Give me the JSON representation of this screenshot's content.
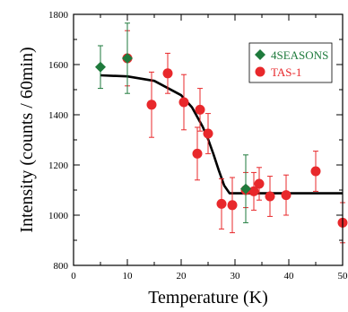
{
  "chart_data": {
    "type": "scatter",
    "title": "",
    "xlabel": "Temperature (K)",
    "ylabel": "Intensity (counts / 60min)",
    "xlim": [
      0,
      50
    ],
    "ylim": [
      800,
      1800
    ],
    "x_ticks": [
      0,
      10,
      20,
      30,
      40,
      50
    ],
    "y_ticks": [
      800,
      1000,
      1200,
      1400,
      1600,
      1800
    ],
    "x_tick_labels": [
      "0",
      "10",
      "20",
      "30",
      "40",
      "50"
    ],
    "y_tick_labels": [
      "800",
      "1000",
      "1200",
      "1400",
      "1600",
      "1800"
    ],
    "grid": false,
    "legend_position": "top-right",
    "series": [
      {
        "name": "4SEASONS",
        "marker": "diamond",
        "color": "#1e7a3c",
        "points": [
          {
            "x": 5,
            "y": 1590,
            "err": 85
          },
          {
            "x": 10,
            "y": 1625,
            "err": 140
          },
          {
            "x": 32,
            "y": 1105,
            "err": 135
          }
        ]
      },
      {
        "name": "TAS-1",
        "marker": "circle",
        "color": "#e8282b",
        "points": [
          {
            "x": 10,
            "y": 1625,
            "err": 110
          },
          {
            "x": 14.5,
            "y": 1440,
            "err": 130
          },
          {
            "x": 17.5,
            "y": 1565,
            "err": 80
          },
          {
            "x": 20.5,
            "y": 1450,
            "err": 110
          },
          {
            "x": 23,
            "y": 1245,
            "err": 105
          },
          {
            "x": 23.5,
            "y": 1420,
            "err": 85
          },
          {
            "x": 25,
            "y": 1325,
            "err": 80
          },
          {
            "x": 27.5,
            "y": 1045,
            "err": 100
          },
          {
            "x": 29.5,
            "y": 1040,
            "err": 110
          },
          {
            "x": 32,
            "y": 1100,
            "err": 70
          },
          {
            "x": 33.5,
            "y": 1095,
            "err": 75
          },
          {
            "x": 34.5,
            "y": 1125,
            "err": 65
          },
          {
            "x": 36.5,
            "y": 1075,
            "err": 80
          },
          {
            "x": 39.5,
            "y": 1080,
            "err": 80
          },
          {
            "x": 45,
            "y": 1175,
            "err": 80
          },
          {
            "x": 50,
            "y": 970,
            "err": 80
          }
        ]
      }
    ],
    "fit_curve": {
      "color": "#000000",
      "points": [
        [
          5,
          1557
        ],
        [
          10,
          1553
        ],
        [
          15,
          1535
        ],
        [
          20,
          1478
        ],
        [
          22,
          1430
        ],
        [
          24,
          1352
        ],
        [
          25,
          1303
        ],
        [
          26,
          1243
        ],
        [
          27,
          1178
        ],
        [
          28,
          1118
        ],
        [
          29,
          1087
        ],
        [
          29.5,
          1087
        ],
        [
          50,
          1087
        ]
      ]
    }
  }
}
